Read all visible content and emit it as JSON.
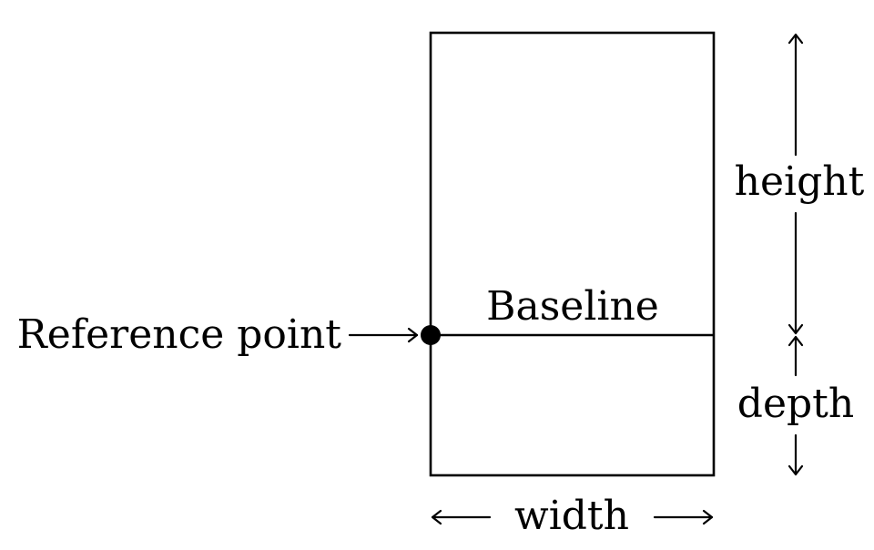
{
  "labels": {
    "reference_point": "Reference point",
    "baseline": "Baseline",
    "height": "height",
    "depth": "depth",
    "width": "width"
  },
  "colors": {
    "stroke": "#000000",
    "background": "#ffffff"
  }
}
